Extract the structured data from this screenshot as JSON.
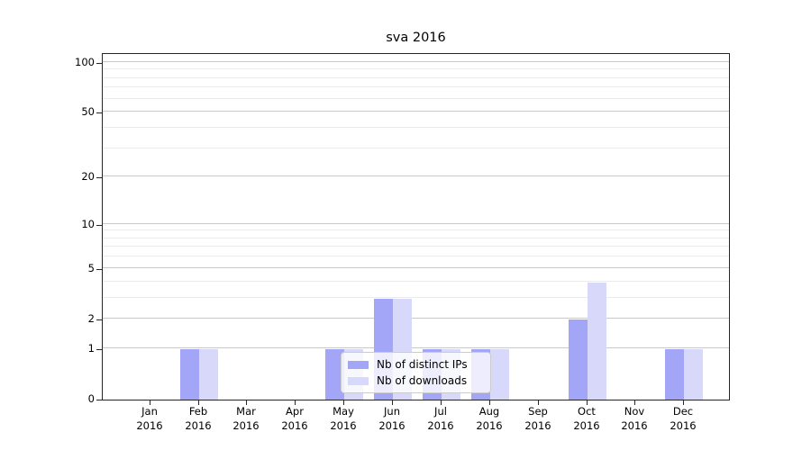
{
  "title": "sva 2016",
  "legend": {
    "items": [
      {
        "label": "Nb of distinct IPs",
        "color": "#a3a5f6"
      },
      {
        "label": "Nb of downloads",
        "color": "#d8d9fa"
      }
    ],
    "position": "lower center"
  },
  "chart_data": {
    "type": "bar",
    "title": "sva 2016",
    "categories": [
      "Jan",
      "Feb",
      "Mar",
      "Apr",
      "May",
      "Jun",
      "Jul",
      "Aug",
      "Sep",
      "Oct",
      "Nov",
      "Dec"
    ],
    "category_year": "2016",
    "series": [
      {
        "name": "Nb of distinct IPs",
        "color": "#a3a5f6",
        "values": [
          0,
          1,
          0,
          0,
          1,
          3,
          1,
          1,
          0,
          2,
          0,
          1
        ]
      },
      {
        "name": "Nb of downloads",
        "color": "#d8d9fa",
        "values": [
          0,
          1,
          0,
          0,
          1,
          3,
          1,
          1,
          0,
          4,
          0,
          1
        ]
      }
    ],
    "xlabel": "",
    "ylabel": "",
    "y_axis": {
      "scale": "log1p",
      "range": [
        0,
        100
      ],
      "major_ticks": [
        0,
        1,
        2,
        5,
        10,
        20,
        50,
        100
      ],
      "minor_gridlines": [
        3,
        4,
        6,
        7,
        8,
        9,
        30,
        40,
        60,
        70,
        80,
        90
      ]
    },
    "grid": true,
    "legend_position": "lower center"
  }
}
